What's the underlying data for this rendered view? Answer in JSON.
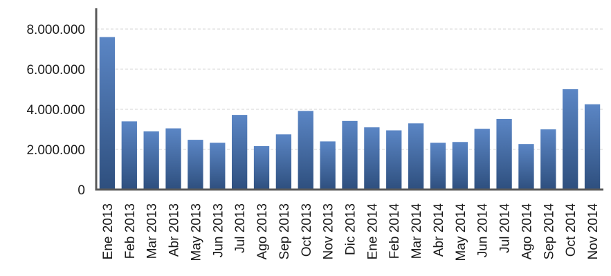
{
  "chart_data": {
    "type": "bar",
    "categories": [
      "Ene 2013",
      "Feb 2013",
      "Mar 2013",
      "Abr 2013",
      "May 2013",
      "Jun 2013",
      "Jul 2013",
      "Ago 2013",
      "Sep 2013",
      "Oct 2013",
      "Nov 2013",
      "Dic 2013",
      "Ene 2014",
      "Feb 2014",
      "Mar 2014",
      "Abr 2014",
      "May 2014",
      "Jun 2014",
      "Jul 2014",
      "Ago 2014",
      "Sep 2014",
      "Oct 2014",
      "Nov 2014"
    ],
    "values": [
      7600000,
      3400000,
      2900000,
      3050000,
      2480000,
      2330000,
      3720000,
      2170000,
      2750000,
      3920000,
      2400000,
      3420000,
      3100000,
      2950000,
      3300000,
      2330000,
      2370000,
      3030000,
      3520000,
      2270000,
      3000000,
      5000000,
      4250000
    ],
    "yticks": [
      0,
      2000000,
      4000000,
      6000000,
      8000000
    ],
    "ytick_labels": [
      "0",
      "2.000.000",
      "4.000.000",
      "6.000.000",
      "8.000.000"
    ],
    "ylim": [
      0,
      8000000
    ],
    "title": "",
    "xlabel": "",
    "ylabel": "",
    "grid": true,
    "legend": "none",
    "bar_color_top": "#5b86c5",
    "bar_color_bottom": "#2e4f7e"
  }
}
